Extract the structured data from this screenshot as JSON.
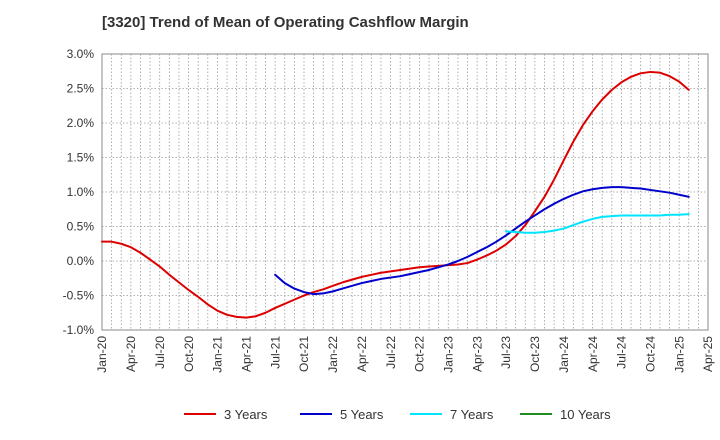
{
  "chart_data": {
    "type": "line",
    "title": "[3320]  Trend of Mean of Operating Cashflow Margin",
    "xlabel": "",
    "ylabel": "",
    "ylim": [
      -1.0,
      3.0
    ],
    "y_ticks": [
      -1.0,
      -0.5,
      0.0,
      0.5,
      1.0,
      1.5,
      2.0,
      2.5,
      3.0
    ],
    "y_tick_labels": [
      "-1.0%",
      "-0.5%",
      "0.0%",
      "0.5%",
      "1.0%",
      "1.5%",
      "2.0%",
      "2.5%",
      "3.0%"
    ],
    "x_range": [
      0,
      63
    ],
    "x_ticks": [
      0,
      3,
      6,
      9,
      12,
      15,
      18,
      21,
      24,
      27,
      30,
      33,
      36,
      39,
      42,
      45,
      48,
      51,
      54,
      57,
      60,
      63
    ],
    "x_tick_labels": [
      "Jan-20",
      "Apr-20",
      "Jul-20",
      "Oct-20",
      "Jan-21",
      "Apr-21",
      "Jul-21",
      "Oct-21",
      "Jan-22",
      "Apr-22",
      "Jul-22",
      "Oct-22",
      "Jan-23",
      "Apr-23",
      "Jul-23",
      "Oct-23",
      "Jan-24",
      "Apr-24",
      "Jul-24",
      "Oct-24",
      "Jan-25",
      "Apr-25"
    ],
    "x_note": "x values are months since Jan-20",
    "grid": true,
    "legend_position": "bottom",
    "series": [
      {
        "name": "3 Years",
        "color": "#dd0000",
        "points": [
          [
            0,
            0.28
          ],
          [
            1,
            0.28
          ],
          [
            2,
            0.25
          ],
          [
            3,
            0.2
          ],
          [
            4,
            0.12
          ],
          [
            5,
            0.02
          ],
          [
            6,
            -0.08
          ],
          [
            7,
            -0.2
          ],
          [
            8,
            -0.31
          ],
          [
            9,
            -0.42
          ],
          [
            10,
            -0.52
          ],
          [
            11,
            -0.63
          ],
          [
            12,
            -0.72
          ],
          [
            13,
            -0.78
          ],
          [
            14,
            -0.81
          ],
          [
            15,
            -0.82
          ],
          [
            16,
            -0.8
          ],
          [
            17,
            -0.75
          ],
          [
            18,
            -0.68
          ],
          [
            19,
            -0.62
          ],
          [
            20,
            -0.56
          ],
          [
            21,
            -0.5
          ],
          [
            22,
            -0.45
          ],
          [
            23,
            -0.41
          ],
          [
            24,
            -0.36
          ],
          [
            25,
            -0.31
          ],
          [
            26,
            -0.27
          ],
          [
            27,
            -0.23
          ],
          [
            28,
            -0.2
          ],
          [
            29,
            -0.17
          ],
          [
            30,
            -0.15
          ],
          [
            31,
            -0.13
          ],
          [
            32,
            -0.11
          ],
          [
            33,
            -0.09
          ],
          [
            34,
            -0.08
          ],
          [
            35,
            -0.07
          ],
          [
            36,
            -0.06
          ],
          [
            37,
            -0.05
          ],
          [
            38,
            -0.03
          ],
          [
            39,
            0.02
          ],
          [
            40,
            0.08
          ],
          [
            41,
            0.15
          ],
          [
            42,
            0.24
          ],
          [
            43,
            0.36
          ],
          [
            44,
            0.52
          ],
          [
            45,
            0.72
          ],
          [
            46,
            0.93
          ],
          [
            47,
            1.18
          ],
          [
            48,
            1.46
          ],
          [
            49,
            1.73
          ],
          [
            50,
            1.97
          ],
          [
            51,
            2.17
          ],
          [
            52,
            2.34
          ],
          [
            53,
            2.48
          ],
          [
            54,
            2.59
          ],
          [
            55,
            2.67
          ],
          [
            56,
            2.72
          ],
          [
            57,
            2.74
          ],
          [
            58,
            2.73
          ],
          [
            59,
            2.68
          ],
          [
            60,
            2.6
          ],
          [
            61,
            2.48
          ]
        ]
      },
      {
        "name": "5 Years",
        "color": "#0000cc",
        "points": [
          [
            18,
            -0.2
          ],
          [
            19,
            -0.32
          ],
          [
            20,
            -0.4
          ],
          [
            21,
            -0.45
          ],
          [
            22,
            -0.48
          ],
          [
            23,
            -0.47
          ],
          [
            24,
            -0.44
          ],
          [
            25,
            -0.4
          ],
          [
            26,
            -0.36
          ],
          [
            27,
            -0.32
          ],
          [
            28,
            -0.29
          ],
          [
            29,
            -0.26
          ],
          [
            30,
            -0.24
          ],
          [
            31,
            -0.22
          ],
          [
            32,
            -0.19
          ],
          [
            33,
            -0.16
          ],
          [
            34,
            -0.13
          ],
          [
            35,
            -0.09
          ],
          [
            36,
            -0.05
          ],
          [
            37,
            0.0
          ],
          [
            38,
            0.06
          ],
          [
            39,
            0.13
          ],
          [
            40,
            0.2
          ],
          [
            41,
            0.28
          ],
          [
            42,
            0.37
          ],
          [
            43,
            0.47
          ],
          [
            44,
            0.57
          ],
          [
            45,
            0.66
          ],
          [
            46,
            0.75
          ],
          [
            47,
            0.83
          ],
          [
            48,
            0.9
          ],
          [
            49,
            0.96
          ],
          [
            50,
            1.01
          ],
          [
            51,
            1.04
          ],
          [
            52,
            1.06
          ],
          [
            53,
            1.07
          ],
          [
            54,
            1.07
          ],
          [
            55,
            1.06
          ],
          [
            56,
            1.05
          ],
          [
            57,
            1.03
          ],
          [
            58,
            1.01
          ],
          [
            59,
            0.99
          ],
          [
            60,
            0.96
          ],
          [
            61,
            0.93
          ]
        ]
      },
      {
        "name": "7 Years",
        "color": "#00e5ff",
        "points": [
          [
            42,
            0.43
          ],
          [
            43,
            0.42
          ],
          [
            44,
            0.41
          ],
          [
            45,
            0.41
          ],
          [
            46,
            0.42
          ],
          [
            47,
            0.44
          ],
          [
            48,
            0.47
          ],
          [
            49,
            0.52
          ],
          [
            50,
            0.57
          ],
          [
            51,
            0.61
          ],
          [
            52,
            0.64
          ],
          [
            53,
            0.65
          ],
          [
            54,
            0.66
          ],
          [
            55,
            0.66
          ],
          [
            56,
            0.66
          ],
          [
            57,
            0.66
          ],
          [
            58,
            0.66
          ],
          [
            59,
            0.67
          ],
          [
            60,
            0.67
          ],
          [
            61,
            0.68
          ]
        ]
      },
      {
        "name": "10 Years",
        "color": "#228b22",
        "points": []
      }
    ]
  }
}
